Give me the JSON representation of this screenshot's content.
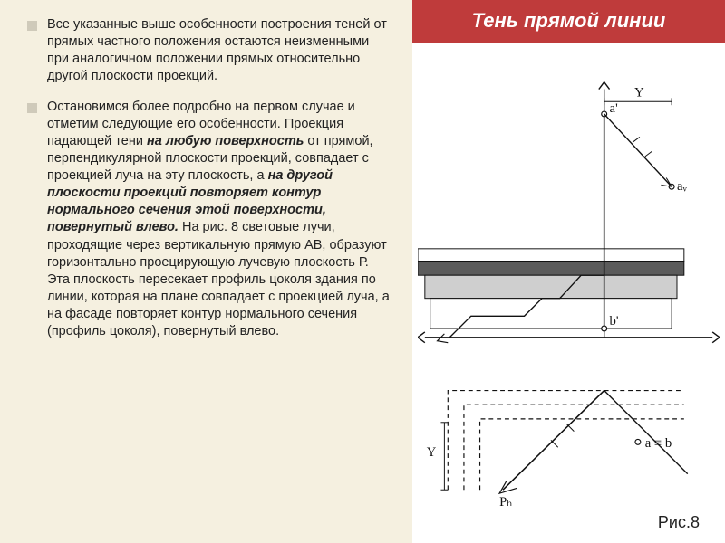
{
  "title": "Тень прямой линии",
  "fig_label": "Рис.8",
  "bullets": [
    {
      "runs": [
        {
          "t": "Все указанные выше особенности построения теней от прямых частного положения остаются неизменными при аналогичном положении прямых относительно другой плоскости проекций.",
          "style": ""
        }
      ]
    },
    {
      "runs": [
        {
          "t": "Остановимся более подробно на первом случае и отметим следующие его особенности. Проекция падающей тени ",
          "style": ""
        },
        {
          "t": "на любую поверхность",
          "style": "bi"
        },
        {
          "t": " от прямой, перпендикулярной плоскости проекций, совпадает с проекцией луча на эту плоскость, а ",
          "style": ""
        },
        {
          "t": "на другой плоскости проекций повторяет контур нормального сечения этой поверхности, повернутый влево.",
          "style": "bi"
        },
        {
          "t": " На рис. 8 световые лучи, проходящие через вертикальную прямую АВ, образуют горизонтально проецирующую лучевую плоскость Р. Эта плоскость пересекает профиль цоколя здания по линии, которая на плане совпадает с проекцией луча, а на фасаде повторяет контур нормального сечения (профиль цоколя), повернутый влево.",
          "style": ""
        }
      ]
    }
  ],
  "diagram": {
    "axis_color": "#111111",
    "fill_gray": "#cfcfcf",
    "fill_dark": "#5b5b5b",
    "bg": "#ffffff",
    "labels": {
      "Y_top": "Y",
      "Y_bot": "Y",
      "a_prime": "a'",
      "av": "aᵥ",
      "b_prime": "b'",
      "a_eq_b": "a ≡ b",
      "PH": "Pₕ"
    }
  }
}
